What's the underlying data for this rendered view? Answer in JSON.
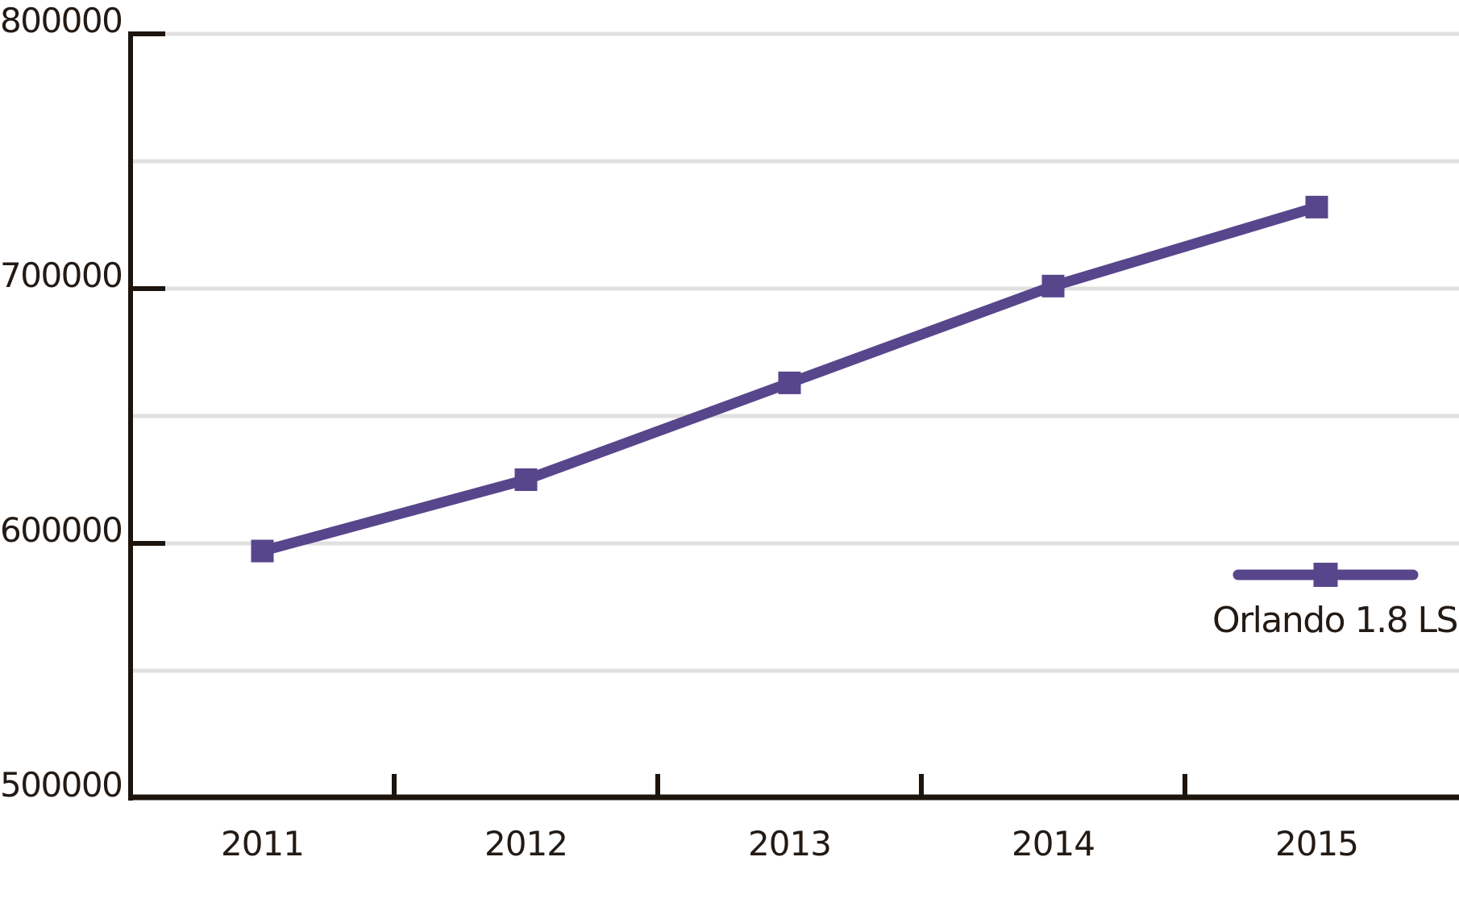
{
  "chart_data": {
    "type": "line",
    "title": "",
    "xlabel": "",
    "ylabel": "",
    "categories": [
      "2011",
      "2012",
      "2013",
      "2014",
      "2015"
    ],
    "series": [
      {
        "name": "Orlando 1.8 LS",
        "values": [
          597000,
          625000,
          663000,
          701000,
          732000
        ],
        "color": "#57468b",
        "marker": "square",
        "line_width": 13
      }
    ],
    "ylim": [
      500000,
      800000
    ],
    "y_major_ticks": [
      800000,
      700000,
      600000,
      500000
    ],
    "y_minor_gridlines": [
      750000,
      650000,
      550000
    ],
    "grid": "horizontal-only",
    "legend_position": "right-middle"
  },
  "axes": {
    "y": {
      "labels": [
        "800000",
        "700000",
        "600000",
        "500000"
      ]
    },
    "x": {
      "labels": [
        "2011",
        "2012",
        "2013",
        "2014",
        "2015"
      ]
    }
  },
  "legend": {
    "label": "Orlando 1.8 LS"
  },
  "colors": {
    "series": "#57468b",
    "gridline": "#e0e0e0",
    "axis": "#1d140e",
    "text": "#231a14"
  }
}
